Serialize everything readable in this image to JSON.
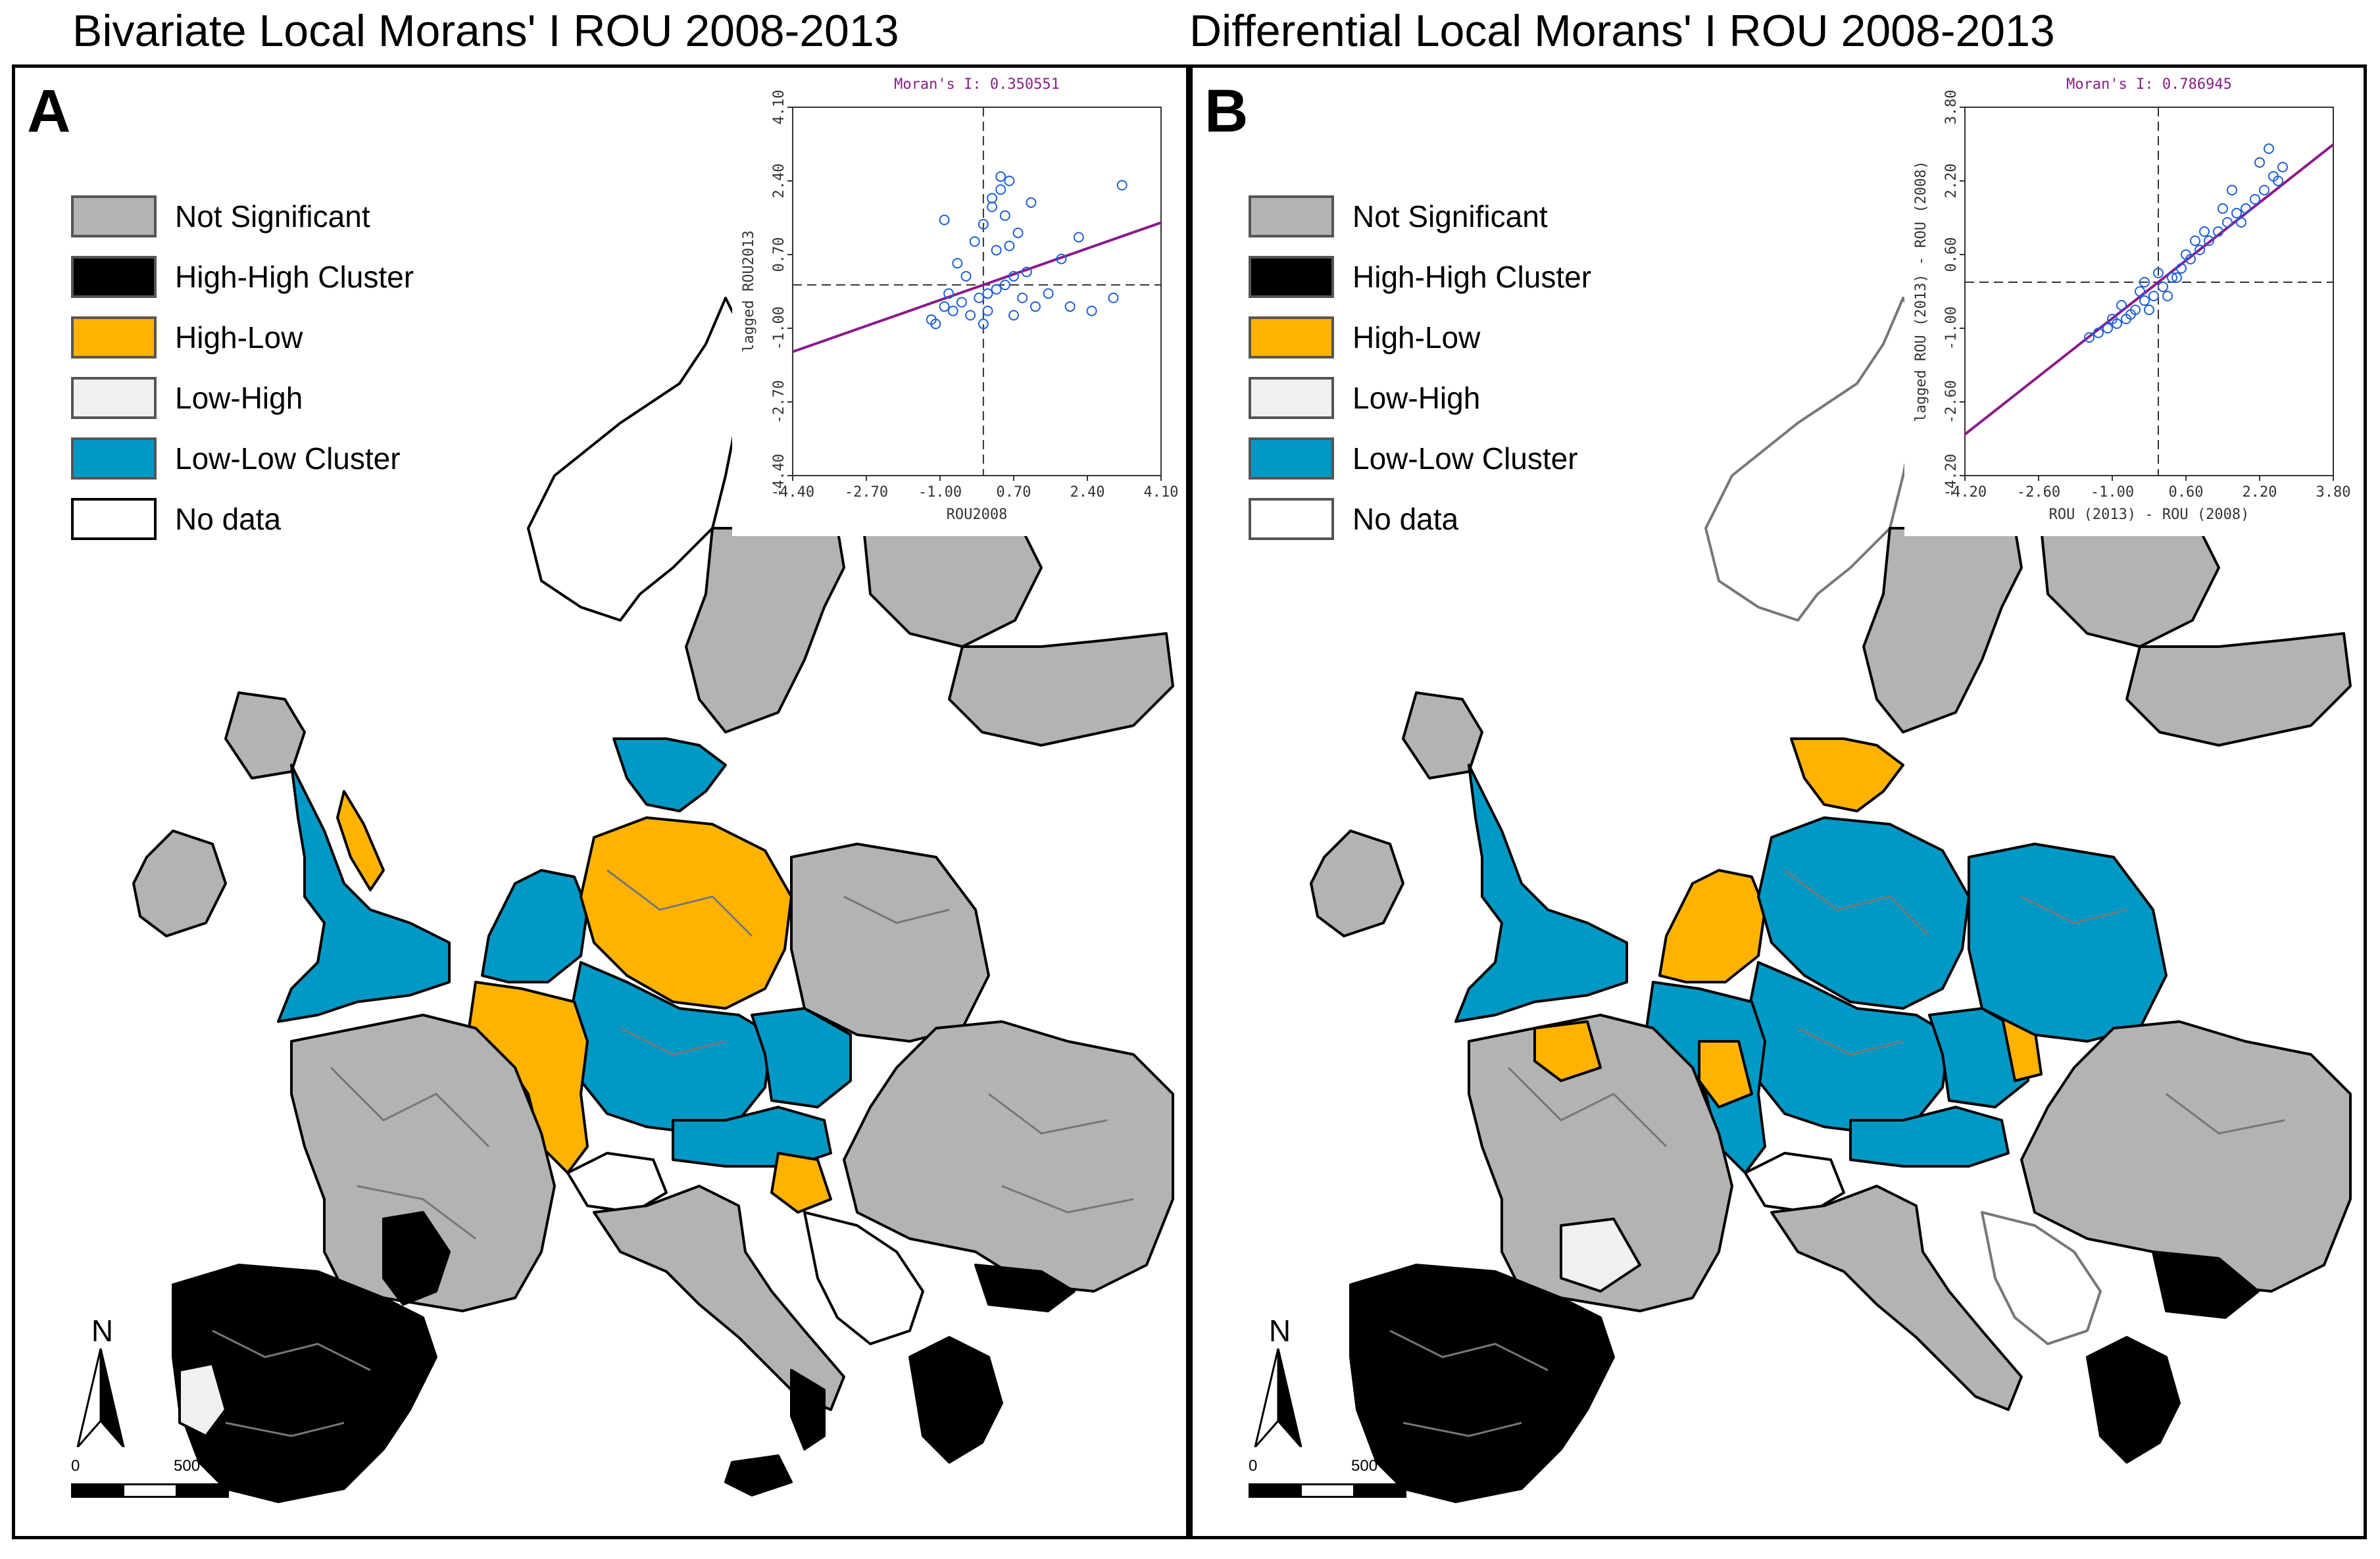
{
  "titles": {
    "left": "Bivariate Local Morans' I ROU 2008-2013",
    "right": "Differential Local Morans' I ROU 2008-2013"
  },
  "colors": {
    "not_significant": "#b3b3b3",
    "high_high": "#000000",
    "high_low": "#ffb300",
    "low_high": "#f0f0f0",
    "low_low": "#0099c6",
    "no_data": "#ffffff",
    "regression": "#8b1a8b",
    "points": "#1f5fd8"
  },
  "legend": [
    {
      "key": "not_significant",
      "label": "Not Significant",
      "color": "#b3b3b3"
    },
    {
      "key": "high_high",
      "label": "High-High Cluster",
      "color": "#000000"
    },
    {
      "key": "high_low",
      "label": "High-Low",
      "color": "#ffb300"
    },
    {
      "key": "low_high",
      "label": "Low-High",
      "color": "#f0f0f0"
    },
    {
      "key": "low_low",
      "label": "Low-Low Cluster",
      "color": "#0099c6"
    },
    {
      "key": "no_data",
      "label": "No data",
      "color": "#ffffff"
    }
  ],
  "panels": [
    {
      "letter": "A",
      "moran_label": "Moran's I: 0.350551",
      "xlabel": "ROU2008",
      "ylabel": "lagged ROU2013",
      "x_ticks": [
        "-4.40",
        "-2.70",
        "-1.00",
        "0.70",
        "2.40",
        "4.10"
      ],
      "y_ticks": [
        "-4.40",
        "-2.70",
        "-1.00",
        "0.70",
        "2.40",
        "4.10"
      ],
      "scale_zero": "0",
      "scale_label": "500 Km",
      "north": "N"
    },
    {
      "letter": "B",
      "moran_label": "Moran's I: 0.786945",
      "xlabel": "ROU (2013) - ROU (2008)",
      "ylabel": "lagged ROU (2013) - ROU (2008)",
      "x_ticks": [
        "-4.20",
        "-2.60",
        "-1.00",
        "0.60",
        "2.20",
        "3.80"
      ],
      "y_ticks": [
        "-4.20",
        "-2.60",
        "-1.00",
        "0.60",
        "2.20",
        "3.80"
      ],
      "scale_zero": "0",
      "scale_label": "500 Km",
      "north": "N"
    }
  ],
  "chart_data": [
    {
      "type": "scatter",
      "title": "Moran's I: 0.350551",
      "xlabel": "ROU2008",
      "ylabel": "lagged ROU2013",
      "xlim": [
        -4.4,
        4.1
      ],
      "ylim": [
        -4.4,
        4.1
      ],
      "slope": 0.350551,
      "series": [
        {
          "name": "regions",
          "x": [
            -1.2,
            -0.9,
            -0.7,
            -0.5,
            -0.3,
            -0.1,
            0.1,
            0.3,
            0.5,
            0.7,
            0.9,
            1.2,
            1.5,
            2.0,
            2.5,
            3.0,
            -0.6,
            -0.2,
            0.2,
            0.4,
            0.6,
            0.0,
            0.8,
            1.0,
            -1.1,
            -0.8,
            0.3,
            0.5,
            0.2,
            0.6,
            0.4,
            0.1,
            3.2,
            -0.9,
            1.8,
            2.2,
            0.0,
            0.7,
            -0.4,
            1.1
          ],
          "y": [
            -0.8,
            -0.5,
            -0.6,
            -0.4,
            -0.7,
            -0.3,
            -0.2,
            -0.1,
            0.0,
            0.2,
            -0.3,
            -0.5,
            -0.2,
            -0.5,
            -0.6,
            -0.3,
            0.5,
            1.0,
            1.8,
            2.2,
            2.4,
            1.4,
            1.2,
            0.3,
            -0.9,
            -0.2,
            0.8,
            1.6,
            2.0,
            0.9,
            2.5,
            -0.6,
            2.3,
            1.5,
            0.6,
            1.1,
            -0.9,
            -0.7,
            0.2,
            1.9
          ]
        }
      ]
    },
    {
      "type": "scatter",
      "title": "Moran's I: 0.786945",
      "xlabel": "ROU (2013) - ROU (2008)",
      "ylabel": "lagged ROU (2013) - ROU (2008)",
      "xlim": [
        -4.2,
        3.8
      ],
      "ylim": [
        -4.2,
        3.8
      ],
      "slope": 0.786945,
      "series": [
        {
          "name": "regions",
          "x": [
            -1.5,
            -1.3,
            -1.1,
            -0.9,
            -0.7,
            -0.5,
            -0.3,
            -0.1,
            0.1,
            0.3,
            0.5,
            0.7,
            0.9,
            1.1,
            1.3,
            1.5,
            1.7,
            1.9,
            2.1,
            2.3,
            2.5,
            2.7,
            -0.8,
            -0.6,
            -0.4,
            -0.2,
            0.0,
            0.2,
            0.4,
            -1.0,
            0.6,
            1.0,
            1.4,
            1.8,
            2.2,
            2.6,
            -0.3,
            0.8,
            1.6,
            2.4
          ],
          "y": [
            -1.2,
            -1.1,
            -1.0,
            -0.9,
            -0.8,
            -0.6,
            -0.4,
            -0.3,
            -0.1,
            0.1,
            0.3,
            0.5,
            0.7,
            0.9,
            1.1,
            1.3,
            1.5,
            1.6,
            1.8,
            2.0,
            2.3,
            2.5,
            -0.5,
            -0.7,
            -0.2,
            -0.6,
            0.2,
            -0.3,
            0.1,
            -0.8,
            0.6,
            1.1,
            1.6,
            1.3,
            2.6,
            2.2,
            0.0,
            0.9,
            2.0,
            2.9
          ]
        }
      ]
    }
  ]
}
